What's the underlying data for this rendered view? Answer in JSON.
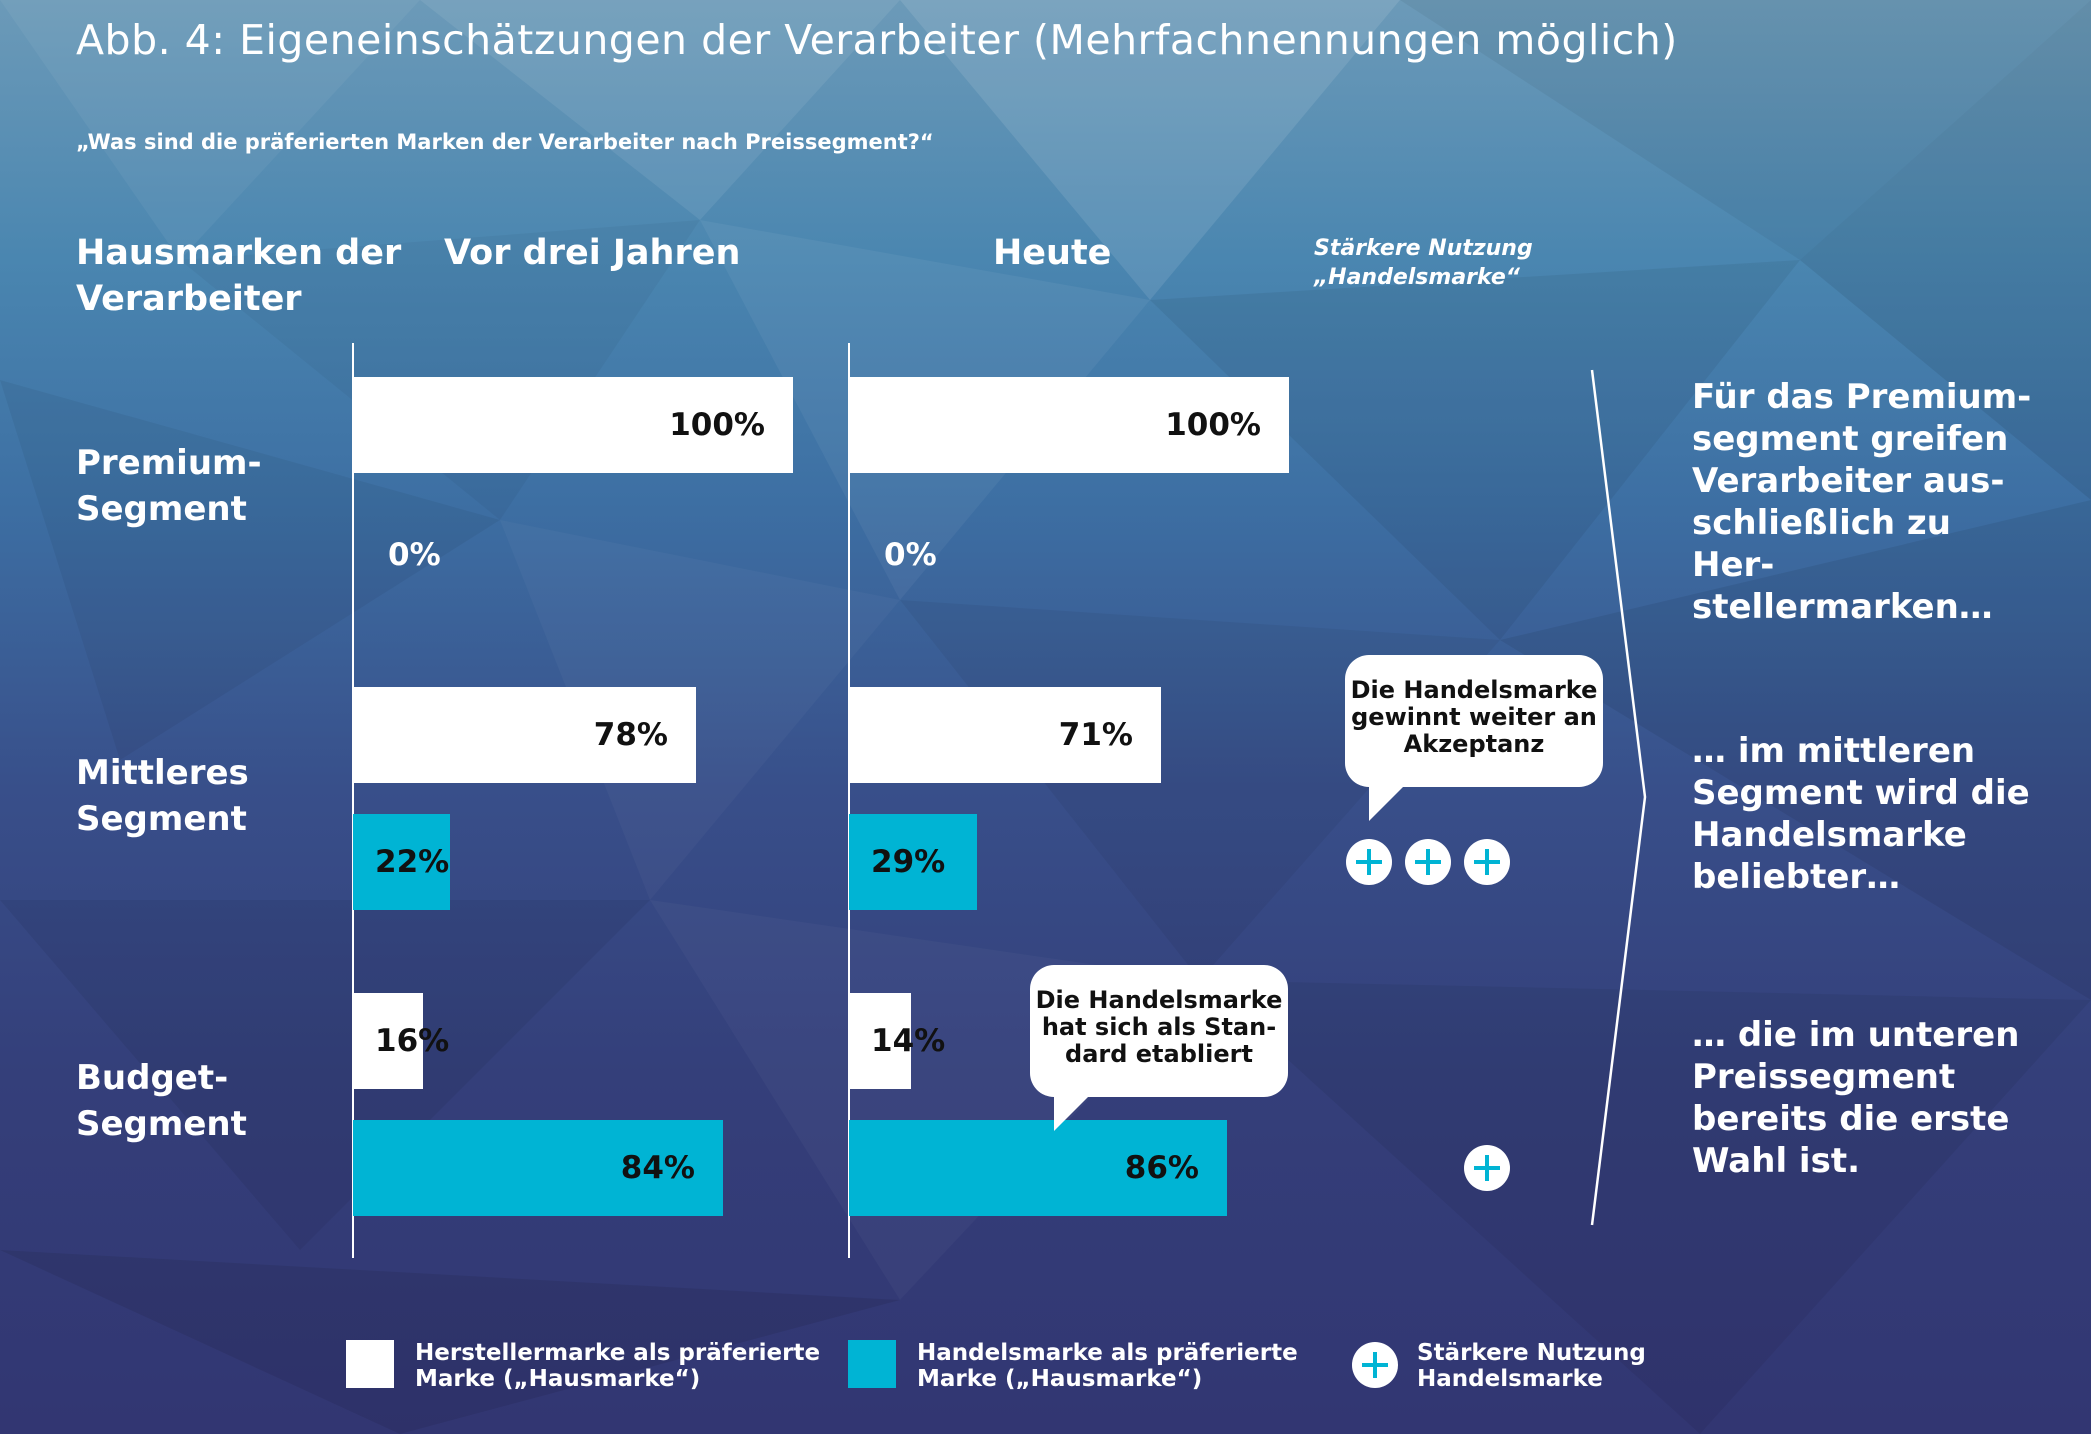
{
  "title": "Abb. 4: Eigeneinschätzungen der Verarbeiter (Mehrfachnennungen möglich)",
  "subtitle": "„Was sind die präferierten Marken der Verarbeiter nach Preissegment?“",
  "header": {
    "row_label_line1": "Hausmarken der",
    "row_label_line2": "Verarbeiter",
    "col_before": "Vor drei Jahren",
    "col_today": "Heute",
    "col_note_line1": "Stärkere Nutzung",
    "col_note_line2": "„Handelsmarke“"
  },
  "rows": [
    {
      "line1": "Premium-",
      "line2": "Segment"
    },
    {
      "line1": "Mittleres",
      "line2": "Segment"
    },
    {
      "line1": "Budget-",
      "line2": "Segment"
    }
  ],
  "colors": {
    "herstellermarke": "#ffffff",
    "handelsmarke": "#00b4d4",
    "plus_symbol": "#00b4d4"
  },
  "chart_data": {
    "type": "bar",
    "orientation": "horizontal",
    "unit": "%",
    "xlim": [
      0,
      100
    ],
    "categories": [
      "Premium-Segment",
      "Mittleres Segment",
      "Budget-Segment"
    ],
    "panels": [
      {
        "name": "Vor drei Jahren",
        "series": [
          {
            "name": "Herstellermarke als präferierte Marke („Hausmarke“)",
            "values": [
              100,
              78,
              16
            ],
            "labels": [
              "100%",
              "78%",
              "16%"
            ]
          },
          {
            "name": "Handelsmarke als präferierte Marke („Hausmarke“)",
            "values": [
              0,
              22,
              84
            ],
            "labels": [
              "0%",
              "22%",
              "84%"
            ]
          }
        ]
      },
      {
        "name": "Heute",
        "series": [
          {
            "name": "Herstellermarke als präferierte Marke („Hausmarke“)",
            "values": [
              100,
              71,
              14
            ],
            "labels": [
              "100%",
              "71%",
              "14%"
            ]
          },
          {
            "name": "Handelsmarke als präferierte Marke („Hausmarke“)",
            "values": [
              0,
              29,
              86
            ],
            "labels": [
              "0%",
              "29%",
              "86%"
            ]
          }
        ]
      }
    ],
    "staerkere_nutzung_handelsmarke": [
      0,
      3,
      1
    ],
    "annotations": [
      {
        "text": "Die Handelsmarke gewinnt weiter an Akzeptanz",
        "segment": "Mittleres Segment"
      },
      {
        "text": "Die Handelsmarke hat sich als Standard etabliert",
        "segment": "Budget-Segment"
      }
    ],
    "legend": [
      {
        "label": "Herstellermarke als präferierte Marke („Hausmarke“)",
        "color": "#ffffff"
      },
      {
        "label": "Handelsmarke als präferierte Marke („Hausmarke“)",
        "color": "#00b4d4"
      },
      {
        "label": "Stärkere Nutzung Handelsmarke",
        "symbol": "plus"
      }
    ],
    "legend_position": "bottom"
  },
  "bubbles": [
    {
      "lines": [
        "Die Handelsmarke",
        "gewinnt weiter an",
        "Akzeptanz"
      ]
    },
    {
      "lines": [
        "Die Handelsmarke",
        "hat sich als Stan-",
        "dard etabliert"
      ]
    }
  ],
  "insights": [
    {
      "lines": [
        "Für das Premium-",
        "segment greifen",
        "Verarbeiter aus-",
        "schließlich zu Her-",
        "stellermarken…"
      ]
    },
    {
      "lines": [
        "… im mittleren",
        "Segment wird die",
        "Handelsmarke",
        "beliebter…"
      ]
    },
    {
      "lines": [
        "… die im unteren",
        "Preissegment",
        "bereits die erste",
        "Wahl ist."
      ]
    }
  ],
  "legend": {
    "hersteller_line1": "Herstellermarke als präferierte",
    "hersteller_line2": "Marke („Hausmarke“)",
    "handel_line1": "Handelsmarke als präferierte",
    "handel_line2": "Marke („Hausmarke“)",
    "plus_line1": "Stärkere Nutzung",
    "plus_line2": "Handelsmarke"
  }
}
